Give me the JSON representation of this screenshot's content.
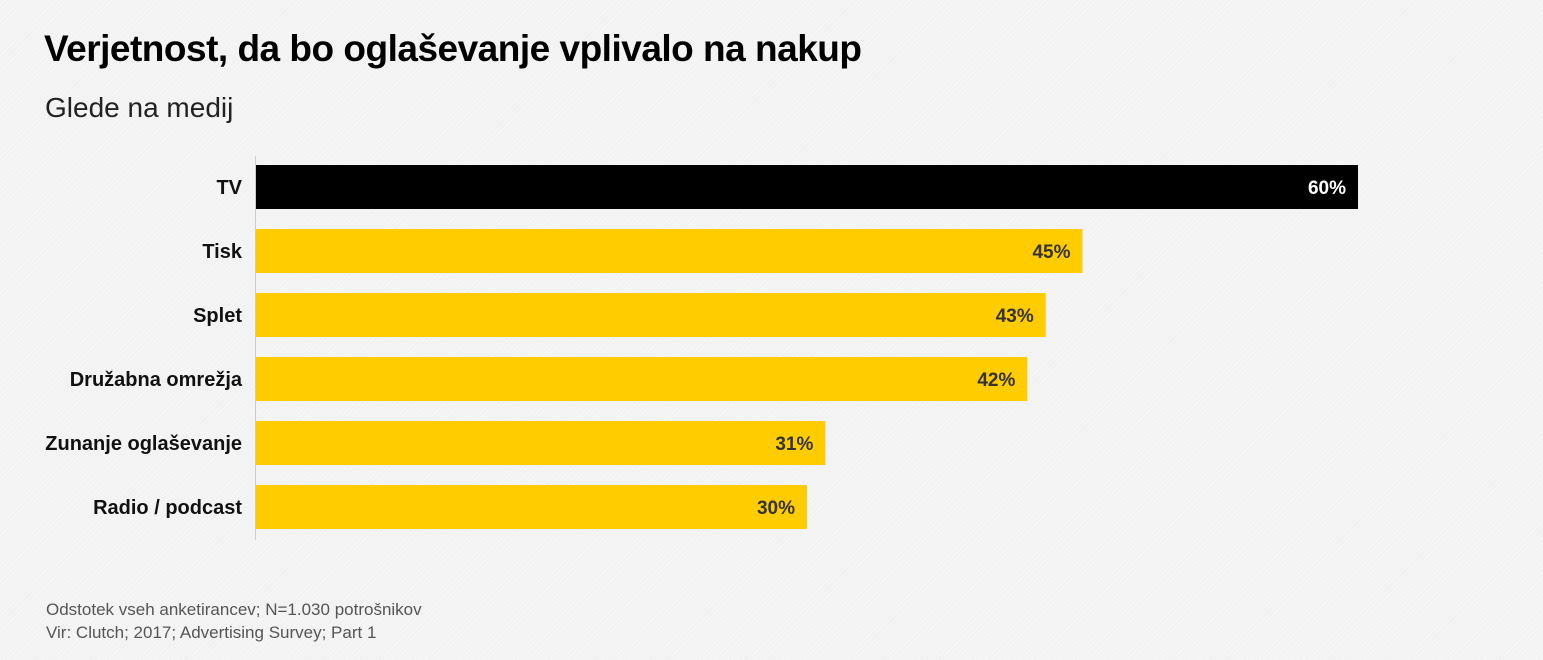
{
  "header": {
    "title": "Verjetnost, da bo oglaševanje vplivalo na nakup",
    "subtitle": "Glede na medij"
  },
  "footer": {
    "note": "Odstotek vseh anketirancev; N=1.030 potrošnikov",
    "source": "Vir: Clutch; 2017; Advertising Survey; Part 1"
  },
  "chart_data": {
    "type": "bar",
    "orientation": "horizontal",
    "categories": [
      "TV",
      "Tisk",
      "Splet",
      "Družabna omrežja",
      "Zunanje oglaševanje",
      "Radio / podcast"
    ],
    "values": [
      60,
      45,
      43,
      42,
      31,
      30
    ],
    "value_labels": [
      "60%",
      "45%",
      "43%",
      "42%",
      "31%",
      "30%"
    ],
    "value_suffix": "%",
    "xlim": [
      0,
      60
    ],
    "grid": false,
    "legend": "none",
    "colors": {
      "highlight": "#000000",
      "default": "#ffcc00",
      "highlight_label": "#ffffff",
      "default_label": "#333333",
      "axis": "#cccccc",
      "category_label": "#111111"
    },
    "highlight_index": 0
  }
}
